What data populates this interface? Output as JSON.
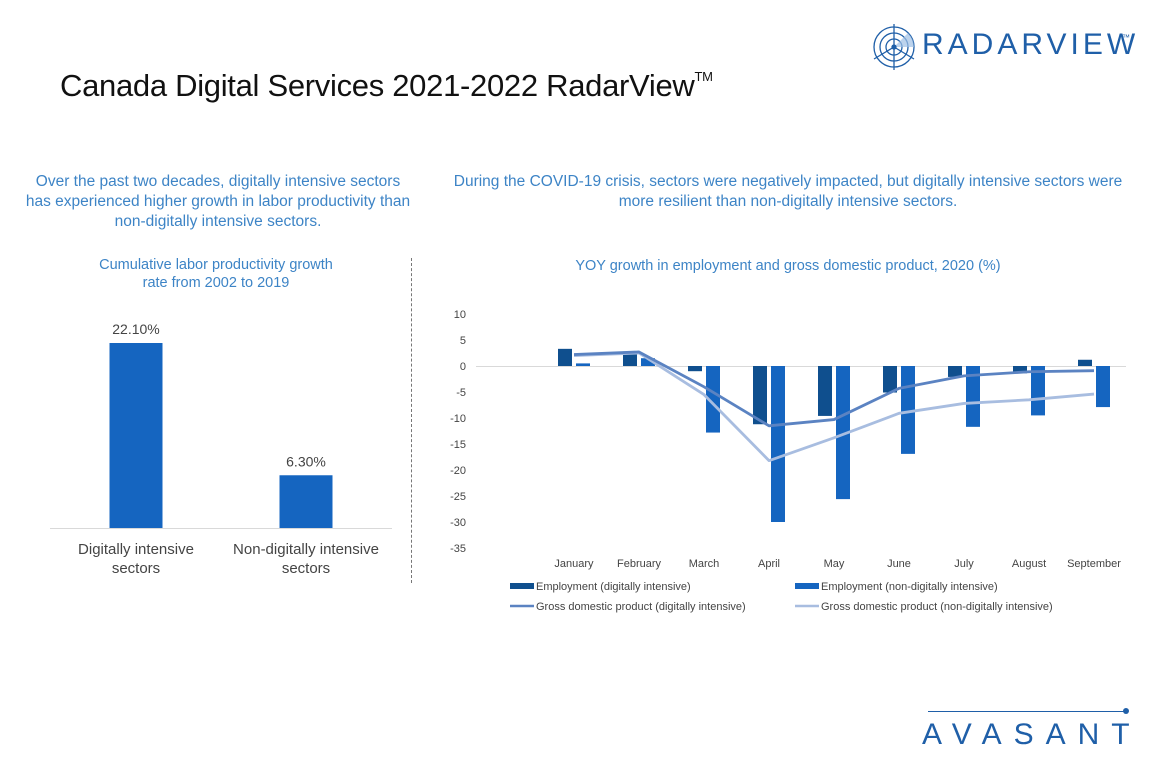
{
  "header": {
    "title": "Canada Digital Services 2021-2022 RadarView",
    "title_tm": "TM",
    "logo_text": "RADARVIEW",
    "logo_tm": "™"
  },
  "footer": {
    "brand": "AVASANT"
  },
  "colors": {
    "accent_text": "#3d84c6",
    "brand_blue": "#1f5fa8",
    "employment_digital": "#0f4f8e",
    "employment_non_digital": "#1565c0",
    "gdp_digital": "#5b83c2",
    "gdp_non_digital": "#a8bde0"
  },
  "left_panel": {
    "lead": "Over the past two decades, digitally intensive sectors has experienced higher growth in labor productivity than non-digitally intensive sectors.",
    "chart_title_line1": "Cumulative labor productivity growth",
    "chart_title_line2": "rate from 2002 to 2019"
  },
  "right_panel": {
    "lead": "During the COVID-19 crisis, sectors were negatively impacted, but digitally intensive sectors were more resilient than non-digitally intensive sectors.",
    "chart_title": "YOY growth in employment and gross domestic product, 2020 (%)"
  },
  "chart_data": [
    {
      "type": "bar",
      "title": "Cumulative labor productivity growth rate from 2002 to 2019",
      "categories": [
        "Digitally intensive sectors",
        "Non-digitally intensive sectors"
      ],
      "category_lines": [
        [
          "Digitally intensive",
          "sectors"
        ],
        [
          "Non-digitally intensive",
          "sectors"
        ]
      ],
      "values": [
        22.1,
        6.3
      ],
      "labels": [
        "22.10%",
        "6.30%"
      ],
      "unit": "%",
      "ylim": [
        0,
        25
      ],
      "grid": false,
      "xlabel": "",
      "ylabel": ""
    },
    {
      "type": "bar",
      "title": "YOY growth in employment and gross domestic product, 2020 (%)",
      "categories": [
        "January",
        "February",
        "March",
        "April",
        "May",
        "June",
        "July",
        "August",
        "September"
      ],
      "ylim": [
        -35,
        10
      ],
      "yticks": [
        10,
        5,
        0,
        -5,
        -10,
        -15,
        -20,
        -25,
        -30,
        -35
      ],
      "grid": false,
      "legend": "bottom",
      "xlabel": "",
      "ylabel": "",
      "series": [
        {
          "name": "Employment (digitally intensive)",
          "kind": "bar",
          "values": [
            3.3,
            2.8,
            -1.0,
            -11.2,
            -9.6,
            -5.1,
            -2.1,
            -1.4,
            1.2
          ]
        },
        {
          "name": "Employment (non-digitally intensive)",
          "kind": "bar",
          "values": [
            0.5,
            1.5,
            -12.8,
            -30.0,
            -25.6,
            -16.9,
            -11.7,
            -9.5,
            -7.9
          ]
        },
        {
          "name": "Gross domestic product (digitally intensive)",
          "kind": "line",
          "values": [
            2.2,
            2.7,
            -4.0,
            -11.5,
            -10.3,
            -4.3,
            -1.9,
            -1.1,
            -0.9
          ]
        },
        {
          "name": "Gross domestic product (non-digitally intensive)",
          "kind": "line",
          "values": [
            2.0,
            2.5,
            -5.5,
            -18.2,
            -13.8,
            -9.1,
            -7.2,
            -6.5,
            -5.4
          ]
        }
      ]
    }
  ]
}
